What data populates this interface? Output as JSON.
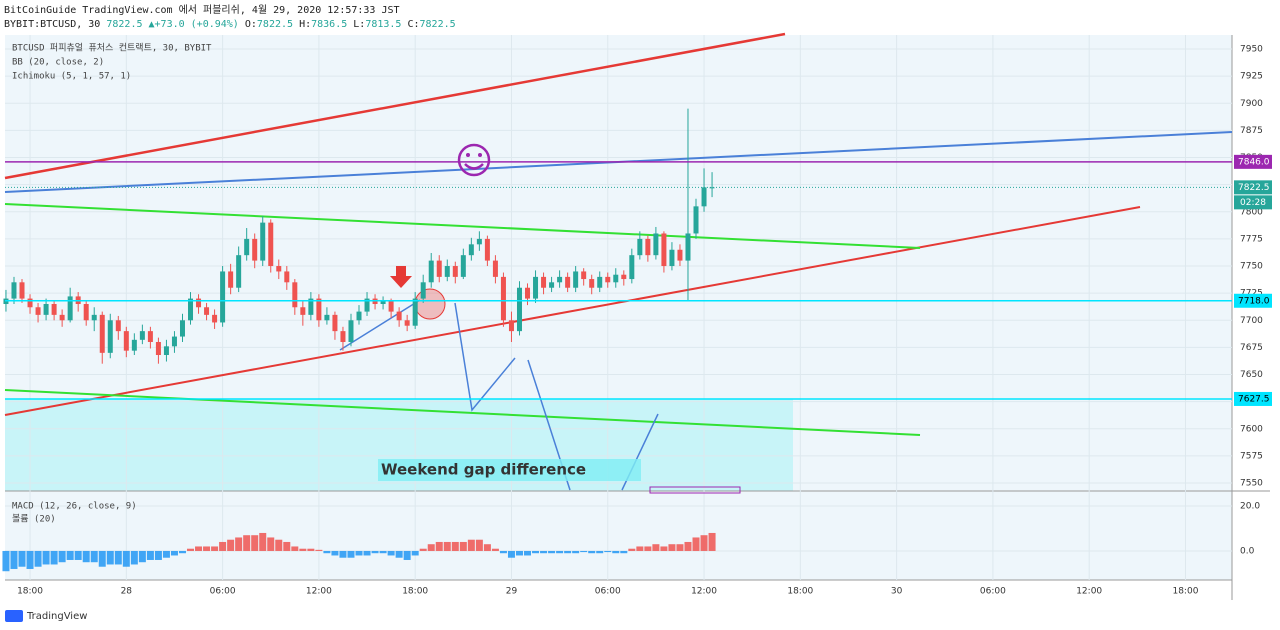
{
  "header": {
    "publisher": "BitCoinGuide TradingView.com 에서 퍼블리쉬, 4월 29, 2020 12:57:33 JST",
    "symbol": "BYBIT:BTCUSD, 30",
    "last": "7822.5",
    "change": "▲+73.0 (+0.94%)",
    "ohlc": [
      {
        "label": "O:",
        "value": "7822.5"
      },
      {
        "label": "H:",
        "value": "7836.5"
      },
      {
        "label": "L:",
        "value": "7813.5"
      },
      {
        "label": "C:",
        "value": "7822.5"
      }
    ]
  },
  "legend": [
    "BTCUSD 퍼피츄얼 퓨처스 컨트랙트, 30, BYBIT",
    "BB (20, close, 2)",
    "Ichimoku (5, 1, 57, 1)"
  ],
  "annotation": "Weekend gap difference",
  "logo": "TradingView",
  "chart_data": {
    "type": "candlestick",
    "up_color": "#26a69a",
    "down_color": "#ef5350",
    "xlim": [
      16.44,
      92.9
    ],
    "xticks": [
      {
        "value": 18,
        "label": "18:00"
      },
      {
        "value": 24,
        "label": "28"
      },
      {
        "value": 30,
        "label": "06:00"
      },
      {
        "value": 36,
        "label": "12:00"
      },
      {
        "value": 42,
        "label": "18:00"
      },
      {
        "value": 48,
        "label": "29"
      },
      {
        "value": 54,
        "label": "06:00"
      },
      {
        "value": 60,
        "label": "12:00"
      },
      {
        "value": 66,
        "label": "18:00"
      },
      {
        "value": 72,
        "label": "30"
      },
      {
        "value": 78,
        "label": "06:00"
      },
      {
        "value": 84,
        "label": "12:00"
      },
      {
        "value": 90,
        "label": "18:00"
      }
    ],
    "ylim": [
      7543.6,
      7962.9
    ],
    "yticks": [
      7550,
      7575,
      7600,
      7625,
      7650,
      7675,
      7700,
      7725,
      7750,
      7775,
      7800,
      7825,
      7850,
      7875,
      7900,
      7925,
      7950
    ],
    "x": [
      16.5,
      17,
      17.5,
      18,
      18.5,
      19,
      19.5,
      20,
      20.5,
      21,
      21.5,
      22,
      22.5,
      23,
      23.5,
      24,
      24.5,
      25,
      25.5,
      26,
      26.5,
      27,
      27.5,
      28,
      28.5,
      29,
      29.5,
      30,
      30.5,
      31,
      31.5,
      32,
      32.5,
      33,
      33.5,
      34,
      34.5,
      35,
      35.5,
      36,
      36.5,
      37,
      37.5,
      38,
      38.5,
      39,
      39.5,
      40,
      40.5,
      41,
      41.5,
      42,
      42.5,
      43,
      43.5,
      44,
      44.5,
      45,
      45.5,
      46,
      46.5,
      47,
      47.5,
      48,
      48.5,
      49,
      49.5,
      50,
      50.5,
      51,
      51.5,
      52,
      52.5,
      53,
      53.5,
      54,
      54.5,
      55,
      55.5,
      56,
      56.5,
      57,
      57.5,
      58,
      58.5,
      59,
      59.5,
      60,
      60.5
    ],
    "open": [
      7715,
      7720,
      7735,
      7720,
      7712,
      7705,
      7715,
      7705,
      7700,
      7722,
      7715,
      7700,
      7705,
      7670,
      7700,
      7690,
      7672,
      7682,
      7690,
      7680,
      7668,
      7676,
      7685,
      7700,
      7720,
      7712,
      7705,
      7698,
      7745,
      7730,
      7760,
      7775,
      7755,
      7790,
      7750,
      7745,
      7735,
      7712,
      7705,
      7720,
      7700,
      7705,
      7690,
      7680,
      7700,
      7708,
      7720,
      7715,
      7718,
      7708,
      7700,
      7695,
      7720,
      7735,
      7755,
      7740,
      7750,
      7740,
      7760,
      7770,
      7775,
      7755,
      7740,
      7700,
      7690,
      7730,
      7720,
      7740,
      7730,
      7735,
      7740,
      7730,
      7745,
      7738,
      7730,
      7740,
      7735,
      7742,
      7738,
      7760,
      7775,
      7760,
      7780,
      7750,
      7765,
      7755,
      7780,
      7805,
      7822.5
    ],
    "high": [
      7728,
      7740,
      7738,
      7724,
      7716,
      7720,
      7718,
      7710,
      7730,
      7726,
      7718,
      7712,
      7708,
      7706,
      7704,
      7694,
      7688,
      7696,
      7694,
      7684,
      7682,
      7690,
      7706,
      7726,
      7724,
      7716,
      7710,
      7750,
      7752,
      7768,
      7785,
      7780,
      7796,
      7793,
      7756,
      7750,
      7738,
      7718,
      7726,
      7724,
      7712,
      7708,
      7694,
      7706,
      7714,
      7726,
      7724,
      7722,
      7720,
      7712,
      7705,
      7726,
      7742,
      7762,
      7760,
      7756,
      7754,
      7766,
      7776,
      7782,
      7778,
      7760,
      7744,
      7708,
      7736,
      7734,
      7746,
      7744,
      7740,
      7746,
      7744,
      7750,
      7748,
      7742,
      7745,
      7744,
      7748,
      7746,
      7766,
      7782,
      7778,
      7786,
      7782,
      7772,
      7770,
      7895,
      7812,
      7840,
      7836.5
    ],
    "low": [
      7708,
      7715,
      7716,
      7706,
      7698,
      7700,
      7700,
      7694,
      7698,
      7708,
      7695,
      7690,
      7660,
      7665,
      7682,
      7666,
      7668,
      7678,
      7674,
      7660,
      7662,
      7670,
      7680,
      7696,
      7706,
      7700,
      7692,
      7694,
      7724,
      7726,
      7755,
      7748,
      7750,
      7744,
      7738,
      7728,
      7705,
      7695,
      7700,
      7694,
      7696,
      7682,
      7672,
      7676,
      7696,
      7704,
      7710,
      7710,
      7702,
      7694,
      7690,
      7692,
      7716,
      7730,
      7735,
      7736,
      7734,
      7738,
      7755,
      7764,
      7750,
      7734,
      7694,
      7680,
      7686,
      7714,
      7716,
      7724,
      7726,
      7730,
      7726,
      7726,
      7732,
      7724,
      7726,
      7730,
      7730,
      7732,
      7734,
      7756,
      7754,
      7756,
      7744,
      7746,
      7750,
      7718,
      7775,
      7800,
      7813.5
    ],
    "close": [
      7720,
      7735,
      7720,
      7712,
      7705,
      7715,
      7705,
      7700,
      7722,
      7715,
      7700,
      7705,
      7670,
      7700,
      7690,
      7672,
      7682,
      7690,
      7680,
      7668,
      7676,
      7685,
      7700,
      7720,
      7712,
      7705,
      7698,
      7745,
      7730,
      7760,
      7775,
      7755,
      7790,
      7750,
      7745,
      7735,
      7712,
      7705,
      7720,
      7700,
      7705,
      7690,
      7680,
      7700,
      7708,
      7720,
      7715,
      7718,
      7708,
      7700,
      7695,
      7720,
      7735,
      7755,
      7740,
      7750,
      7740,
      7760,
      7770,
      7775,
      7755,
      7740,
      7700,
      7690,
      7730,
      7720,
      7740,
      7730,
      7735,
      7740,
      7730,
      7745,
      7738,
      7730,
      7740,
      7735,
      7742,
      7738,
      7760,
      7775,
      7760,
      7780,
      7750,
      7765,
      7755,
      7780,
      7805,
      7822.5,
      7822.5
    ],
    "levels": [
      {
        "value": 7846,
        "label": "7846.0",
        "color": "#9c27b0"
      },
      {
        "value": 7822.5,
        "label": "7822.5",
        "color": "#26a69a"
      },
      {
        "value": 7718,
        "label": "7718.0",
        "color": "#00e5ff"
      },
      {
        "value": 7627.5,
        "label": "7627.5",
        "color": "#00e5ff"
      }
    ],
    "countdown": "02:28",
    "macd": {
      "title": "MACD (12, 26, close, 9)",
      "volume_title": "볼륨 (20)",
      "ylim": [
        -12.9,
        26.2
      ],
      "yticks": [
        {
          "value": 20,
          "label": "20.0"
        },
        {
          "value": 0,
          "label": "0.0"
        }
      ],
      "positive_color": "#ef5350",
      "negative_color": "#2196f3",
      "histogram": [
        -9,
        -8,
        -7,
        -8,
        -7,
        -6,
        -6,
        -5,
        -4,
        -4,
        -5,
        -5,
        -7,
        -6,
        -6,
        -7,
        -6,
        -5,
        -4,
        -4,
        -3,
        -2,
        -1,
        1,
        2,
        2,
        2,
        4,
        5,
        6,
        7,
        7,
        8,
        6,
        5,
        4,
        2,
        1,
        1,
        0.5,
        -1,
        -2,
        -3,
        -3,
        -2,
        -2,
        -1,
        -1,
        -2,
        -3,
        -4,
        -2,
        1,
        3,
        4,
        4,
        4,
        4,
        5,
        5,
        3,
        1,
        -1,
        -3,
        -2,
        -2,
        -1,
        -1,
        -1,
        -1,
        -1,
        -1,
        -0.5,
        -1,
        -1,
        -0.5,
        -1,
        -1,
        1,
        2,
        2,
        3,
        2,
        3,
        3,
        4,
        6,
        7,
        8
      ]
    }
  }
}
